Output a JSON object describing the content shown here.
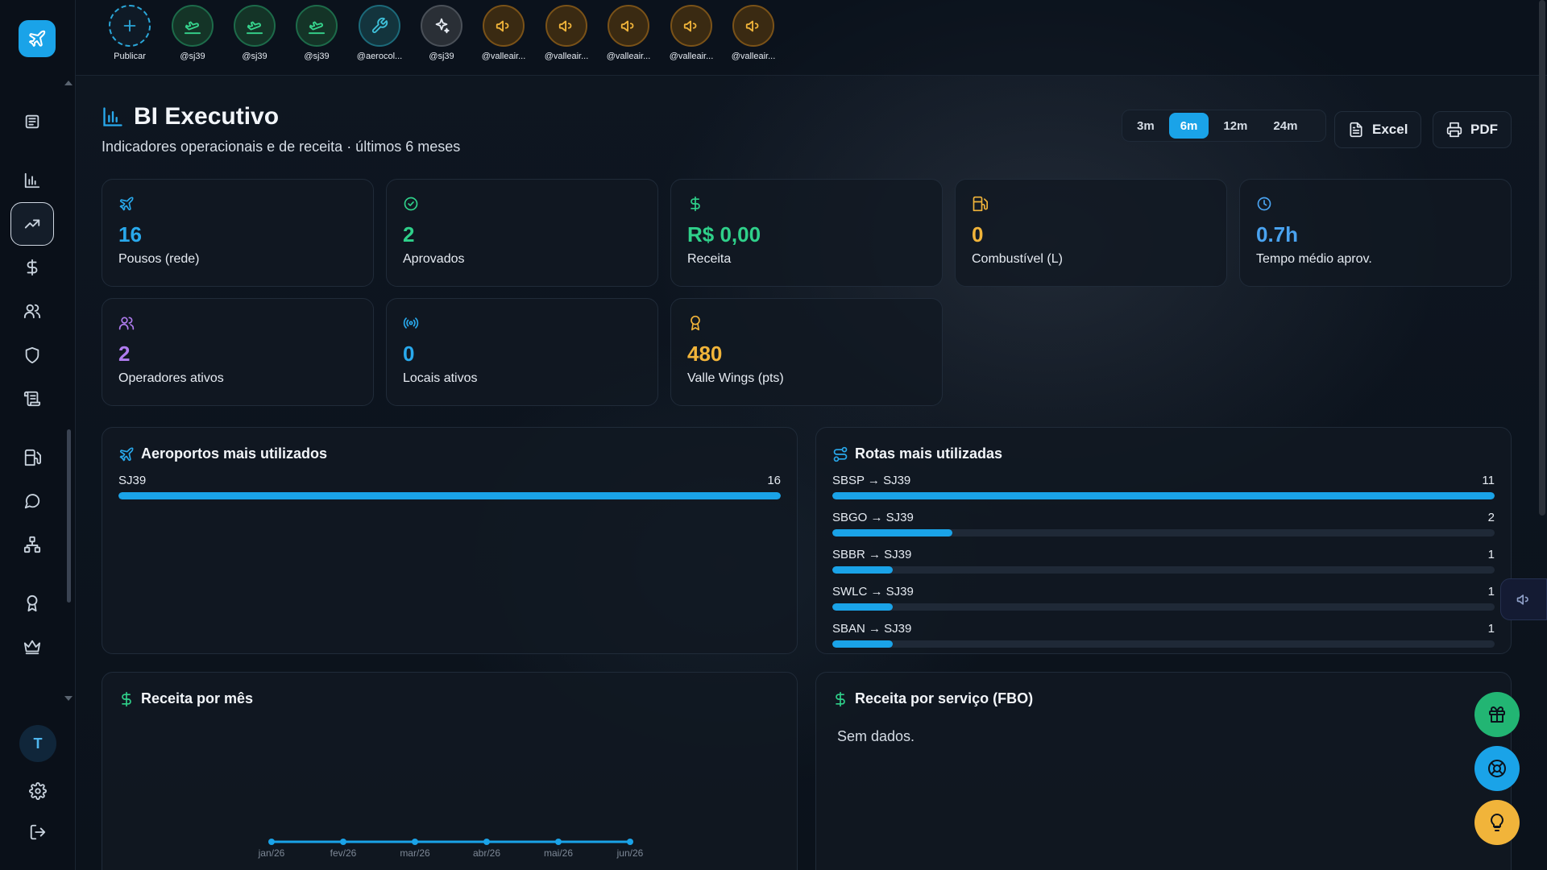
{
  "stories": [
    {
      "label": "Publicar",
      "kind": "add",
      "icon": "plus-icon"
    },
    {
      "label": "@sj39",
      "kind": "green",
      "icon": "landing-plane-icon"
    },
    {
      "label": "@sj39",
      "kind": "green",
      "icon": "landing-plane-icon"
    },
    {
      "label": "@sj39",
      "kind": "green",
      "icon": "landing-plane-icon"
    },
    {
      "label": "@aerocol...",
      "kind": "teal",
      "icon": "wrench-icon"
    },
    {
      "label": "@sj39",
      "kind": "gray",
      "icon": "sparkles-icon"
    },
    {
      "label": "@valleair...",
      "kind": "orange",
      "icon": "megaphone-icon"
    },
    {
      "label": "@valleair...",
      "kind": "orange",
      "icon": "megaphone-icon"
    },
    {
      "label": "@valleair...",
      "kind": "orange",
      "icon": "megaphone-icon"
    },
    {
      "label": "@valleair...",
      "kind": "orange",
      "icon": "megaphone-icon"
    },
    {
      "label": "@valleair...",
      "kind": "orange",
      "icon": "megaphone-icon"
    }
  ],
  "header": {
    "title": "BI Executivo",
    "subtitle": "Indicadores operacionais e de receita · últimos 6 meses"
  },
  "periods": [
    "3m",
    "6m",
    "12m",
    "24m"
  ],
  "active_period": "6m",
  "export": {
    "excel": "Excel",
    "pdf": "PDF"
  },
  "kpis": [
    {
      "value": "16",
      "label": "Pousos (rede)",
      "color": "#29a9ec",
      "icon": "plane-icon"
    },
    {
      "value": "2",
      "label": "Aprovados",
      "color": "#2fd08a",
      "icon": "check-circle-icon"
    },
    {
      "value": "R$ 0,00",
      "label": "Receita",
      "color": "#2fd08a",
      "icon": "dollar-icon"
    },
    {
      "value": "0",
      "label": "Combustível (L)",
      "color": "#f1b43a",
      "icon": "fuel-icon"
    },
    {
      "value": "0.7h",
      "label": "Tempo médio aprov.",
      "color": "#4aa3f0",
      "icon": "clock-icon"
    },
    {
      "value": "2",
      "label": "Operadores ativos",
      "color": "#b07cf0",
      "icon": "users-icon"
    },
    {
      "value": "0",
      "label": "Locais ativos",
      "color": "#29a9ec",
      "icon": "broadcast-icon"
    },
    {
      "value": "480",
      "label": "Valle Wings (pts)",
      "color": "#f1b43a",
      "icon": "award-icon"
    }
  ],
  "airports": {
    "title": "Aeroportos mais utilizados",
    "max": 16,
    "items": [
      {
        "name": "SJ39",
        "value": 16
      }
    ]
  },
  "routes": {
    "title": "Rotas mais utilizadas",
    "max": 11,
    "items": [
      {
        "name": "SBSP → SJ39",
        "value": 11
      },
      {
        "name": "SBGO → SJ39",
        "value": 2
      },
      {
        "name": "SBBR → SJ39",
        "value": 1
      },
      {
        "name": "SWLC → SJ39",
        "value": 1
      },
      {
        "name": "SBAN → SJ39",
        "value": 1
      }
    ]
  },
  "revenue_month": {
    "title": "Receita por mês",
    "chart_data": {
      "type": "line",
      "x": [
        "jan/26",
        "fev/26",
        "mar/26",
        "abr/26",
        "mai/26",
        "jun/26"
      ],
      "values": [
        0,
        0,
        0,
        0,
        0,
        0
      ]
    }
  },
  "revenue_service": {
    "title": "Receita por serviço (FBO)",
    "empty": "Sem dados."
  },
  "user": {
    "initial": "T"
  },
  "colors": {
    "accent": "#1aa3e8",
    "green": "#2fd08a",
    "amber": "#f1b43a",
    "purple": "#b07cf0"
  }
}
